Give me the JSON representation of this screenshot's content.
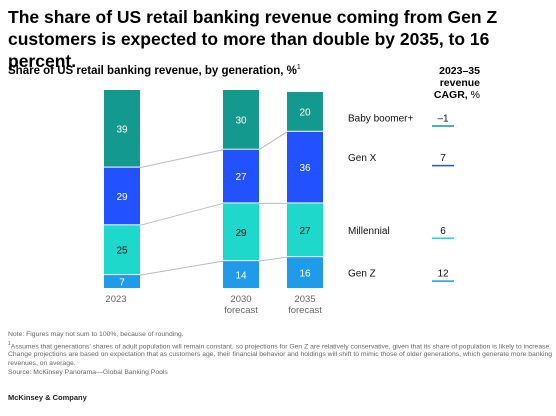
{
  "headline": "The share of US retail banking revenue coming from Gen Z customers is expected to more than double by 2035, to 16 percent.",
  "subtitle": "Share of US retail banking revenue, by generation, %",
  "subtitle_footnote": "1",
  "cagr_header": {
    "line1": "2023–35",
    "line2": "revenue",
    "line3": "CAGR,",
    "unit": " %"
  },
  "chart_data": {
    "type": "bar",
    "stacked": true,
    "title": "Share of US retail banking revenue, by generation, %",
    "categories": [
      "2023",
      "2030 forecast",
      "2035 forecast"
    ],
    "series": [
      {
        "name": "Gen Z",
        "values": [
          7,
          14,
          16
        ],
        "color": "#1f9bea",
        "cagr": "12"
      },
      {
        "name": "Millennial",
        "values": [
          25,
          29,
          27
        ],
        "color": "#1dd8cb",
        "cagr": "6"
      },
      {
        "name": "Gen X",
        "values": [
          29,
          27,
          36
        ],
        "color": "#2251ff",
        "cagr": "7"
      },
      {
        "name": "Baby boomer+",
        "values": [
          39,
          30,
          20
        ],
        "color": "#14998f",
        "cagr": "–1"
      }
    ],
    "category_labels": [
      [
        "2023"
      ],
      [
        "2030",
        "forecast"
      ],
      [
        "2035",
        "forecast"
      ]
    ],
    "ylim": [
      0,
      100
    ],
    "legend": "right"
  },
  "notes": {
    "note": "Note: Figures may not sum to 100%, because of rounding.",
    "footnote_marker": "1",
    "footnote": "Assumes that generations’ shares of adult population will remain constant, so projections for Gen Z are relatively conservative, given that its share of population is likely to increase. Change projections are based on expectation that as customers age, their financial behavior and holdings will shift to mimic those of older generations, which generate more banking revenues, on average.",
    "source": "Source: McKinsey Panorama—Global Banking Pools"
  },
  "footer": "McKinsey & Company"
}
